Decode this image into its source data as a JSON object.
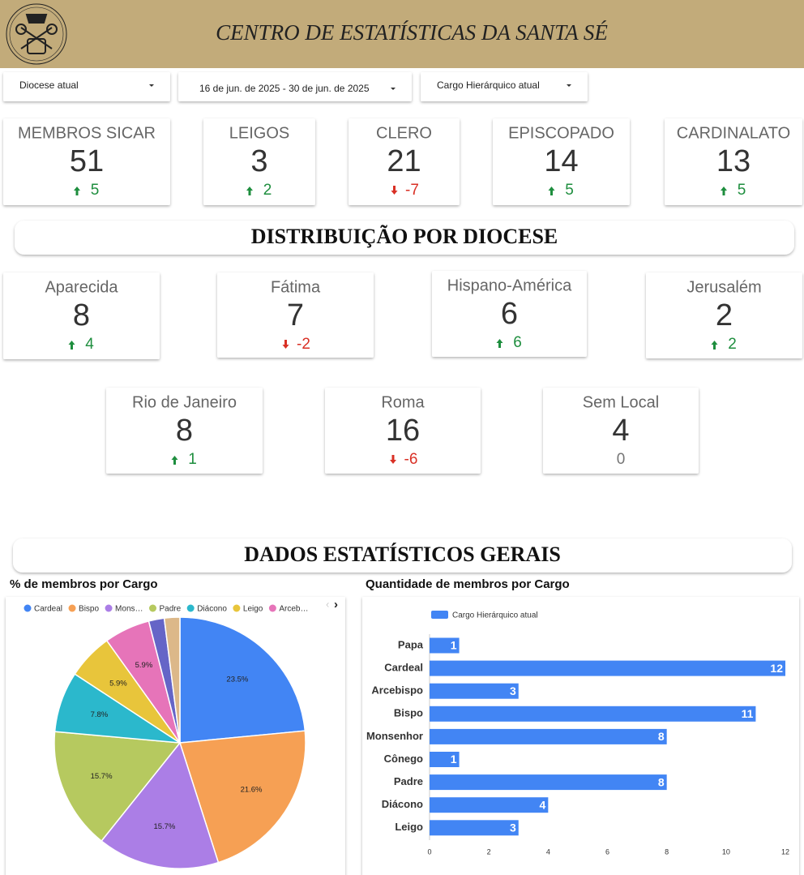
{
  "header": {
    "title": "CENTRO DE ESTATÍSTICAS DA SANTA SÉ"
  },
  "filters": [
    "Diocese atual",
    "16 de jun. de 2025 - 30 de jun. de 2025",
    "Cargo Hierárquico atual"
  ],
  "kpis": [
    {
      "label": "MEMBROS SICAR",
      "value": 51,
      "delta": 5
    },
    {
      "label": "LEIGOS",
      "value": 3,
      "delta": 2
    },
    {
      "label": "CLERO",
      "value": 21,
      "delta": -7
    },
    {
      "label": "EPISCOPADO",
      "value": 14,
      "delta": 5
    },
    {
      "label": "CARDINALATO",
      "value": 13,
      "delta": 5
    }
  ],
  "sections": [
    "DISTRIBUIÇÃO POR DIOCESE",
    "DADOS ESTATÍSTICOS GERAIS"
  ],
  "dioceses": [
    {
      "label": "Aparecida",
      "value": 8,
      "delta": 4
    },
    {
      "label": "Fátima",
      "value": 7,
      "delta": -2
    },
    {
      "label": "Hispano-América",
      "value": 6,
      "delta": 6
    },
    {
      "label": "Jerusalém",
      "value": 2,
      "delta": 2
    },
    {
      "label": "Rio de Janeiro",
      "value": 8,
      "delta": 1
    },
    {
      "label": "Roma",
      "value": 16,
      "delta": -6
    },
    {
      "label": "Sem Local",
      "value": 4,
      "delta": 0
    }
  ],
  "chart_data": [
    {
      "type": "pie",
      "title": "% de membros por Cargo",
      "categories": [
        "Cardeal",
        "Bispo",
        "Mons…",
        "Padre",
        "Diácono",
        "Leigo",
        "Arceb…",
        null,
        null
      ],
      "values": [
        23.5,
        21.6,
        15.7,
        15.7,
        7.8,
        5.9,
        5.9,
        2,
        2
      ],
      "value_labels": [
        "23.5%",
        "21.6%",
        "15.7%",
        "15.7%",
        "7.8%",
        "5.9%",
        "5.9%",
        null,
        null
      ],
      "colors": [
        "#4285f4",
        "#f6a054",
        "#ab7ee6",
        "#b6c95f",
        "#2bb8cc",
        "#e8c53b",
        "#e674b9",
        "#6565c7",
        "#dcb889"
      ]
    },
    {
      "type": "bar",
      "orientation": "horizontal",
      "title": "Quantidade de membros por Cargo",
      "series": [
        {
          "name": "Cargo Hierárquico atual",
          "color": "#4285f4",
          "values": [
            1,
            12,
            3,
            11,
            8,
            1,
            8,
            4,
            3
          ]
        }
      ],
      "categories": [
        "Papa",
        "Cardeal",
        "Arcebispo",
        "Bispo",
        "Monsenhor",
        "Cônego",
        "Padre",
        "Diácono",
        "Leigo"
      ],
      "xlim": [
        0,
        12
      ],
      "xticks": [
        0,
        2,
        4,
        6,
        8,
        10,
        12
      ]
    }
  ]
}
